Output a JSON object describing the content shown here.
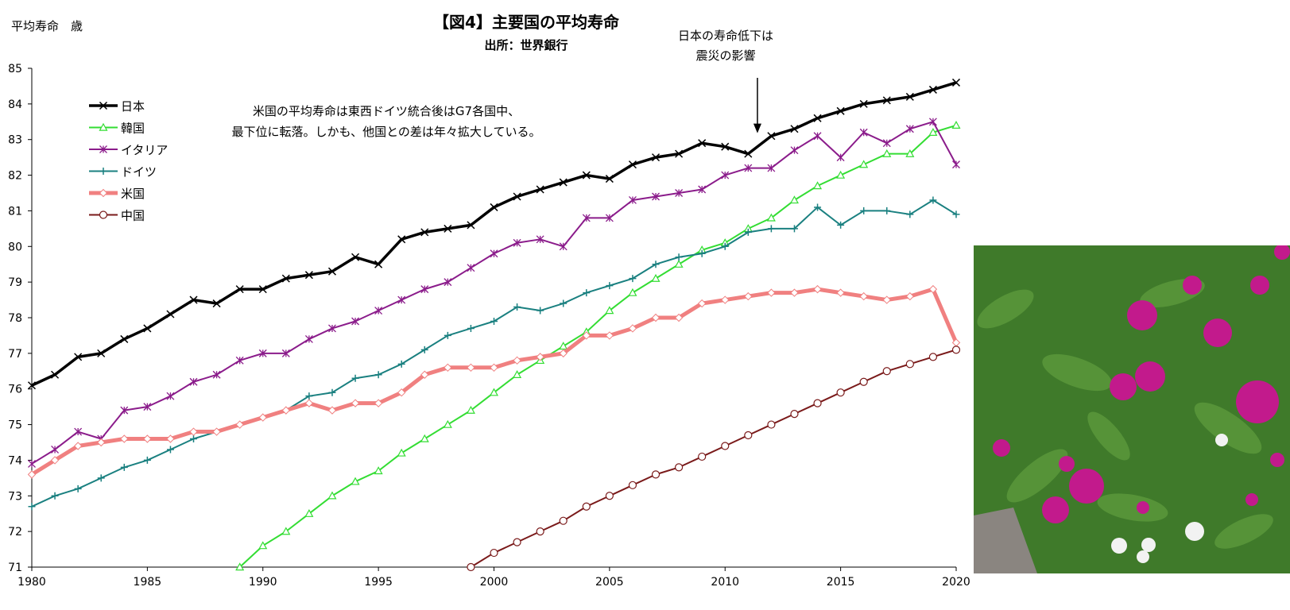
{
  "chart_data": {
    "type": "line",
    "title": "【図4】主要国の平均寿命",
    "subtitle": "出所：世界銀行",
    "ylabel": "平均寿命　歳",
    "xlabel": "",
    "xlim": [
      1980,
      2020
    ],
    "ylim": [
      71,
      85
    ],
    "x_ticks": [
      "1980",
      "1985",
      "1990",
      "1995",
      "2000",
      "2005",
      "2010",
      "2015",
      "2020"
    ],
    "y_ticks": [
      "71",
      "72",
      "73",
      "74",
      "75",
      "76",
      "77",
      "78",
      "79",
      "80",
      "81",
      "82",
      "83",
      "84",
      "85"
    ],
    "grid": false,
    "legend_position": "top-left",
    "annotations": {
      "comment_line1": "米国の平均寿命は東西ドイツ統合後はG7各国中、",
      "comment_line2": "最下位に転落。しかも、他国との差は年々拡大している。",
      "arrow_line1": "日本の寿命低下は",
      "arrow_line2": "震災の影響",
      "arrow_target_x": 2011.4,
      "arrow_target_y": 82.6
    },
    "series": [
      {
        "name": "日本",
        "color": "#000000",
        "marker": "x",
        "width": 3.5,
        "x": [
          1980,
          1981,
          1982,
          1983,
          1984,
          1985,
          1986,
          1987,
          1988,
          1989,
          1990,
          1991,
          1992,
          1993,
          1994,
          1995,
          1996,
          1997,
          1998,
          1999,
          2000,
          2001,
          2002,
          2003,
          2004,
          2005,
          2006,
          2007,
          2008,
          2009,
          2010,
          2011,
          2012,
          2013,
          2014,
          2015,
          2016,
          2017,
          2018,
          2019,
          2020
        ],
        "values": [
          76.1,
          76.4,
          76.9,
          77.0,
          77.4,
          77.7,
          78.1,
          78.5,
          78.4,
          78.8,
          78.8,
          79.1,
          79.2,
          79.3,
          79.7,
          79.5,
          80.2,
          80.4,
          80.5,
          80.6,
          81.1,
          81.4,
          81.6,
          81.8,
          82.0,
          81.9,
          82.3,
          82.5,
          82.6,
          82.9,
          82.8,
          82.6,
          83.1,
          83.3,
          83.6,
          83.8,
          84.0,
          84.1,
          84.2,
          84.4,
          84.6
        ]
      },
      {
        "name": "韓国",
        "color": "#33dd33",
        "marker": "triangle",
        "width": 2,
        "x": [
          1989,
          1990,
          1991,
          1992,
          1993,
          1994,
          1995,
          1996,
          1997,
          1998,
          1999,
          2000,
          2001,
          2002,
          2003,
          2004,
          2005,
          2006,
          2007,
          2008,
          2009,
          2010,
          2011,
          2012,
          2013,
          2014,
          2015,
          2016,
          2017,
          2018,
          2019,
          2020
        ],
        "values": [
          71.0,
          71.6,
          72.0,
          72.5,
          73.0,
          73.4,
          73.7,
          74.2,
          74.6,
          75.0,
          75.4,
          75.9,
          76.4,
          76.8,
          77.2,
          77.6,
          78.2,
          78.7,
          79.1,
          79.5,
          79.9,
          80.1,
          80.5,
          80.8,
          81.3,
          81.7,
          82.0,
          82.3,
          82.6,
          82.6,
          83.2,
          83.4
        ]
      },
      {
        "name": "イタリア",
        "color": "#8b1c8b",
        "marker": "star",
        "width": 2,
        "x": [
          1980,
          1981,
          1982,
          1983,
          1984,
          1985,
          1986,
          1987,
          1988,
          1989,
          1990,
          1991,
          1992,
          1993,
          1994,
          1995,
          1996,
          1997,
          1998,
          1999,
          2000,
          2001,
          2002,
          2003,
          2004,
          2005,
          2006,
          2007,
          2008,
          2009,
          2010,
          2011,
          2012,
          2013,
          2014,
          2015,
          2016,
          2017,
          2018,
          2019,
          2020
        ],
        "values": [
          73.9,
          74.3,
          74.8,
          74.6,
          75.4,
          75.5,
          75.8,
          76.2,
          76.4,
          76.8,
          77.0,
          77.0,
          77.4,
          77.7,
          77.9,
          78.2,
          78.5,
          78.8,
          79.0,
          79.4,
          79.8,
          80.1,
          80.2,
          80.0,
          80.8,
          80.8,
          81.3,
          81.4,
          81.5,
          81.6,
          82.0,
          82.2,
          82.2,
          82.7,
          83.1,
          82.5,
          83.2,
          82.9,
          83.3,
          83.5,
          82.3
        ]
      },
      {
        "name": "ドイツ",
        "color": "#1a8080",
        "marker": "plus",
        "width": 2,
        "x": [
          1980,
          1981,
          1982,
          1983,
          1984,
          1985,
          1986,
          1987,
          1988,
          1989,
          1990,
          1991,
          1992,
          1993,
          1994,
          1995,
          1996,
          1997,
          1998,
          1999,
          2000,
          2001,
          2002,
          2003,
          2004,
          2005,
          2006,
          2007,
          2008,
          2009,
          2010,
          2011,
          2012,
          2013,
          2014,
          2015,
          2016,
          2017,
          2018,
          2019,
          2020
        ],
        "values": [
          72.7,
          73.0,
          73.2,
          73.5,
          73.8,
          74.0,
          74.3,
          74.6,
          74.8,
          75.0,
          75.2,
          75.4,
          75.8,
          75.9,
          76.3,
          76.4,
          76.7,
          77.1,
          77.5,
          77.7,
          77.9,
          78.3,
          78.2,
          78.4,
          78.7,
          78.9,
          79.1,
          79.5,
          79.7,
          79.8,
          80.0,
          80.4,
          80.5,
          80.5,
          81.1,
          80.6,
          81.0,
          81.0,
          80.9,
          81.3,
          80.9
        ]
      },
      {
        "name": "米国",
        "color": "#f08080",
        "marker": "diamond",
        "width": 5,
        "x": [
          1980,
          1981,
          1982,
          1983,
          1984,
          1985,
          1986,
          1987,
          1988,
          1989,
          1990,
          1991,
          1992,
          1993,
          1994,
          1995,
          1996,
          1997,
          1998,
          1999,
          2000,
          2001,
          2002,
          2003,
          2004,
          2005,
          2006,
          2007,
          2008,
          2009,
          2010,
          2011,
          2012,
          2013,
          2014,
          2015,
          2016,
          2017,
          2018,
          2019,
          2020
        ],
        "values": [
          73.6,
          74.0,
          74.4,
          74.5,
          74.6,
          74.6,
          74.6,
          74.8,
          74.8,
          75.0,
          75.2,
          75.4,
          75.6,
          75.4,
          75.6,
          75.6,
          75.9,
          76.4,
          76.6,
          76.6,
          76.6,
          76.8,
          76.9,
          77.0,
          77.5,
          77.5,
          77.7,
          78.0,
          78.0,
          78.4,
          78.5,
          78.6,
          78.7,
          78.7,
          78.8,
          78.7,
          78.6,
          78.5,
          78.6,
          78.8,
          77.3
        ]
      },
      {
        "name": "中国",
        "color": "#7a1a1a",
        "marker": "circle",
        "width": 2,
        "x": [
          1999,
          2000,
          2001,
          2002,
          2003,
          2004,
          2005,
          2006,
          2007,
          2008,
          2009,
          2010,
          2011,
          2012,
          2013,
          2014,
          2015,
          2016,
          2017,
          2018,
          2019,
          2020
        ],
        "values": [
          71.0,
          71.4,
          71.7,
          72.0,
          72.3,
          72.7,
          73.0,
          73.3,
          73.6,
          73.8,
          74.1,
          74.4,
          74.7,
          75.0,
          75.3,
          75.6,
          75.9,
          76.2,
          76.5,
          76.7,
          76.9,
          77.1
        ]
      }
    ]
  },
  "photo": {
    "icon": "globe-amaranth-flower-photo",
    "colors": {
      "leaf": "#3f7a2a",
      "flower": "#c21a8c",
      "white_flower": "#f2f2f2",
      "stone": "#8a8580"
    }
  }
}
